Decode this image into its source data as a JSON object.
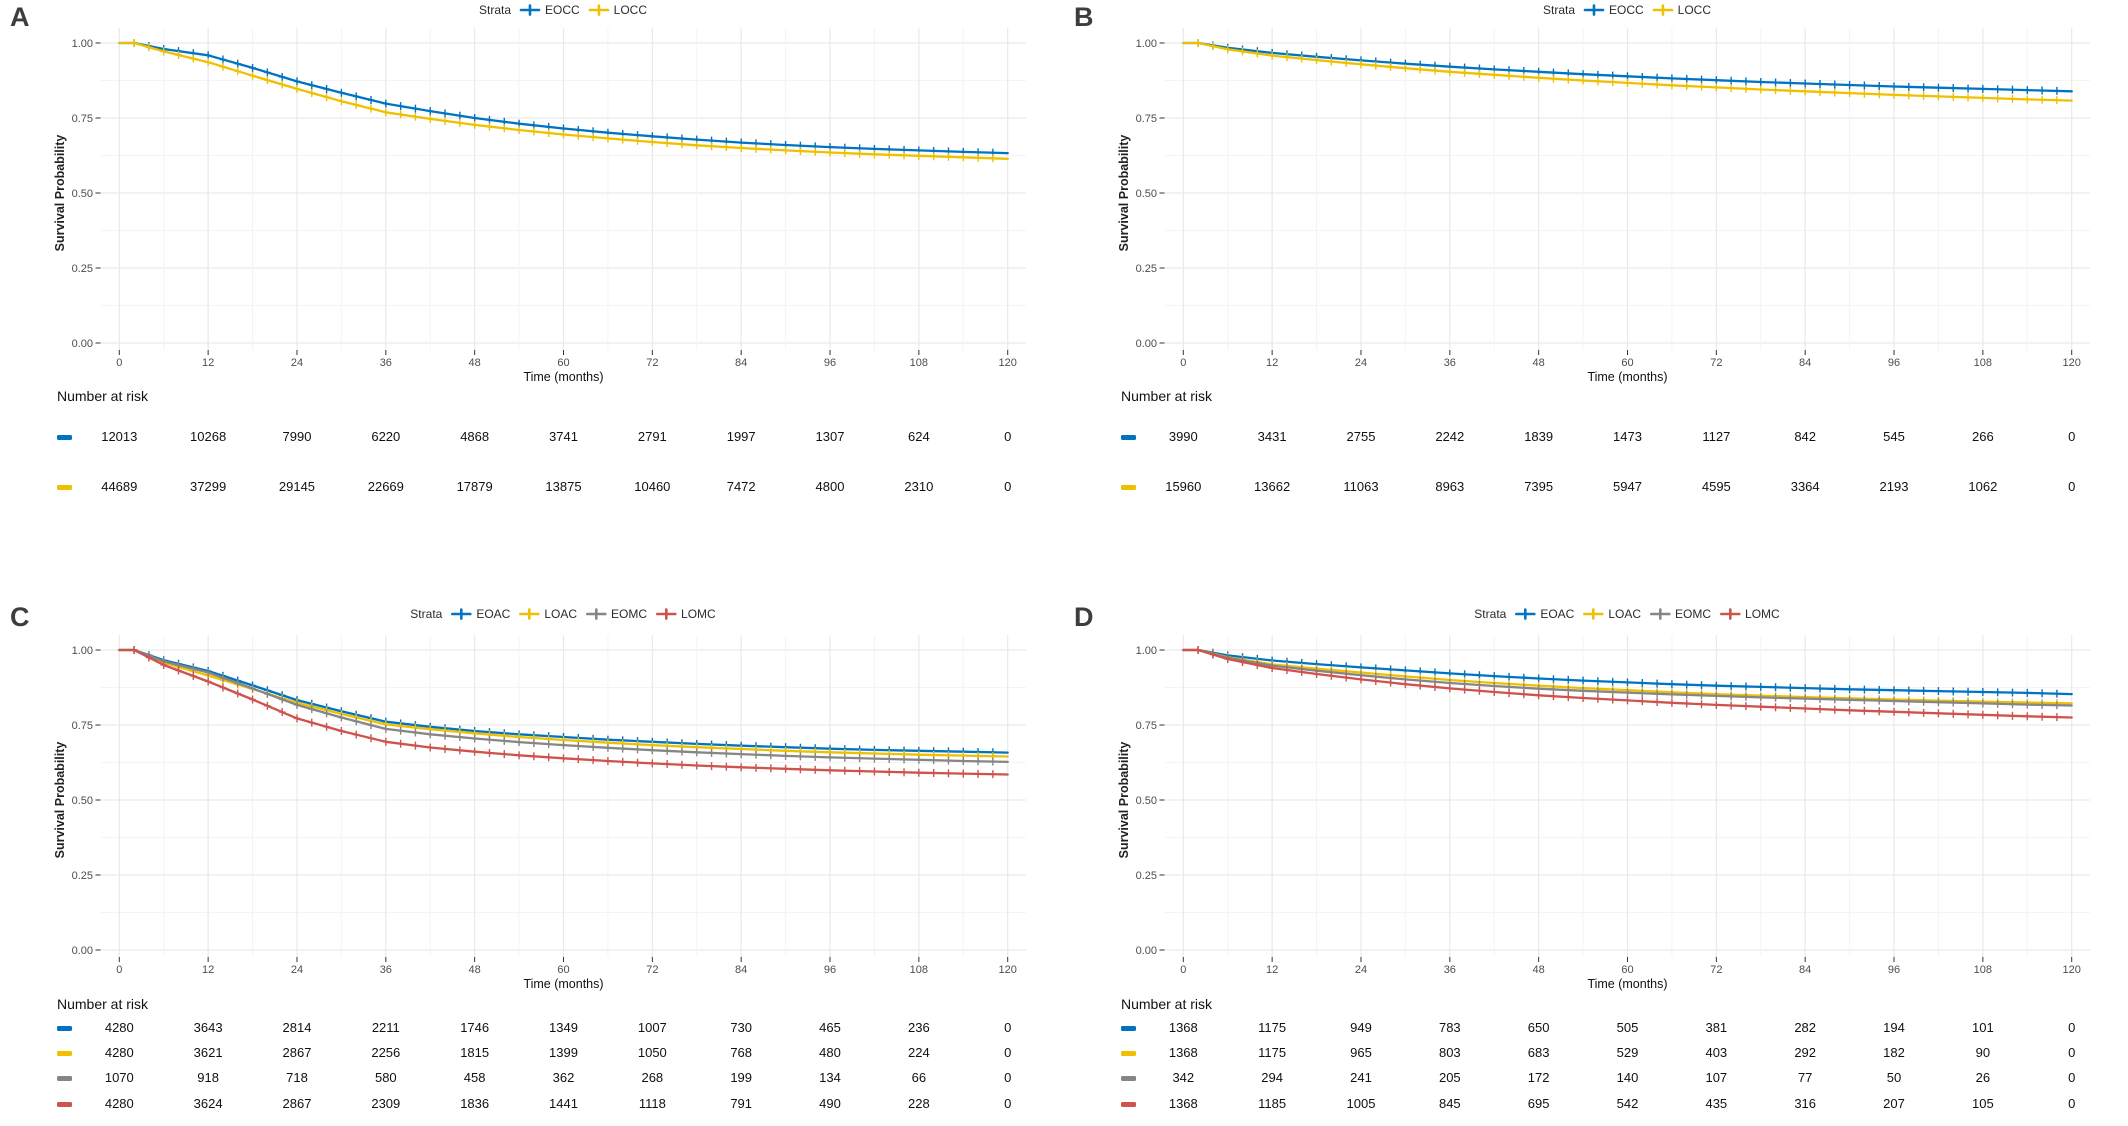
{
  "figure_background": "#ffffff",
  "strata_colors": {
    "blue": "#0073C2",
    "gold": "#EFC000",
    "gray": "#868686",
    "red": "#CD534C"
  },
  "chart_data": [
    {
      "type": "line",
      "subtype": "kaplan-meier-survival",
      "panel_label": "A",
      "legend_title": "Strata",
      "xlabel": "Time (months)",
      "ylabel": "Survival Probability",
      "xlim": [
        0,
        120
      ],
      "ylim": [
        0,
        1
      ],
      "x_ticks": [
        0,
        12,
        24,
        36,
        48,
        60,
        72,
        84,
        96,
        108,
        120
      ],
      "y_ticks": [
        0,
        0.25,
        0.5,
        0.75,
        1
      ],
      "grid": true,
      "legend_position": "top",
      "x": [
        0,
        6,
        12,
        18,
        24,
        30,
        36,
        42,
        48,
        54,
        60,
        66,
        72,
        78,
        84,
        90,
        96,
        102,
        108,
        114,
        120
      ],
      "series": [
        {
          "name": "EOCC",
          "color": "#0073C2",
          "values": [
            1.0,
            0.98,
            0.959,
            0.917,
            0.872,
            0.834,
            0.798,
            0.773,
            0.75,
            0.731,
            0.715,
            0.701,
            0.689,
            0.678,
            0.668,
            0.66,
            0.653,
            0.647,
            0.642,
            0.637,
            0.633
          ]
        },
        {
          "name": "LOCC",
          "color": "#EFC000",
          "values": [
            1.0,
            0.972,
            0.936,
            0.891,
            0.847,
            0.806,
            0.769,
            0.747,
            0.727,
            0.71,
            0.695,
            0.682,
            0.67,
            0.659,
            0.65,
            0.642,
            0.635,
            0.629,
            0.624,
            0.619,
            0.614
          ]
        }
      ],
      "risk_table": {
        "title": "Number at risk",
        "months": [
          0,
          12,
          24,
          36,
          48,
          60,
          72,
          84,
          96,
          108,
          120
        ],
        "rows": [
          {
            "name": "EOCC",
            "color": "#0073C2",
            "counts": [
              12013,
              10268,
              7990,
              6220,
              4868,
              3741,
              2791,
              1997,
              1307,
              624,
              0
            ]
          },
          {
            "name": "LOCC",
            "color": "#EFC000",
            "counts": [
              44689,
              37299,
              29145,
              22669,
              17879,
              13875,
              10460,
              7472,
              4800,
              2310,
              0
            ]
          }
        ]
      }
    },
    {
      "type": "line",
      "subtype": "kaplan-meier-survival",
      "panel_label": "B",
      "legend_title": "Strata",
      "xlabel": "Time (months)",
      "ylabel": "Survival Probability",
      "xlim": [
        0,
        120
      ],
      "ylim": [
        0,
        1
      ],
      "x_ticks": [
        0,
        12,
        24,
        36,
        48,
        60,
        72,
        84,
        96,
        108,
        120
      ],
      "y_ticks": [
        0,
        0.25,
        0.5,
        0.75,
        1
      ],
      "grid": true,
      "legend_position": "top",
      "x": [
        0,
        6,
        12,
        18,
        24,
        30,
        36,
        42,
        48,
        54,
        60,
        66,
        72,
        78,
        84,
        90,
        96,
        102,
        108,
        114,
        120
      ],
      "series": [
        {
          "name": "EOCC",
          "color": "#0073C2",
          "values": [
            1.0,
            0.984,
            0.967,
            0.954,
            0.942,
            0.931,
            0.921,
            0.912,
            0.904,
            0.896,
            0.889,
            0.882,
            0.876,
            0.87,
            0.865,
            0.86,
            0.855,
            0.851,
            0.847,
            0.843,
            0.839
          ]
        },
        {
          "name": "LOCC",
          "color": "#EFC000",
          "values": [
            1.0,
            0.979,
            0.958,
            0.943,
            0.929,
            0.916,
            0.904,
            0.894,
            0.884,
            0.875,
            0.867,
            0.859,
            0.852,
            0.845,
            0.839,
            0.833,
            0.827,
            0.822,
            0.817,
            0.812,
            0.808
          ]
        }
      ],
      "risk_table": {
        "title": "Number at risk",
        "months": [
          0,
          12,
          24,
          36,
          48,
          60,
          72,
          84,
          96,
          108,
          120
        ],
        "rows": [
          {
            "name": "EOCC",
            "color": "#0073C2",
            "counts": [
              3990,
              3431,
              2755,
              2242,
              1839,
              1473,
              1127,
              842,
              545,
              266,
              0
            ]
          },
          {
            "name": "LOCC",
            "color": "#EFC000",
            "counts": [
              15960,
              13662,
              11063,
              8963,
              7395,
              5947,
              4595,
              3364,
              2193,
              1062,
              0
            ]
          }
        ]
      }
    },
    {
      "type": "line",
      "subtype": "kaplan-meier-survival",
      "panel_label": "C",
      "legend_title": "Strata",
      "xlabel": "Time (months)",
      "ylabel": "Survival Probability",
      "xlim": [
        0,
        120
      ],
      "ylim": [
        0,
        1
      ],
      "x_ticks": [
        0,
        12,
        24,
        36,
        48,
        60,
        72,
        84,
        96,
        108,
        120
      ],
      "y_ticks": [
        0,
        0.25,
        0.5,
        0.75,
        1
      ],
      "grid": true,
      "legend_position": "top",
      "x": [
        0,
        6,
        12,
        18,
        24,
        30,
        36,
        42,
        48,
        54,
        60,
        66,
        72,
        78,
        84,
        90,
        96,
        102,
        108,
        114,
        120
      ],
      "series": [
        {
          "name": "EOAC",
          "color": "#0073C2",
          "values": [
            1.0,
            0.966,
            0.93,
            0.882,
            0.833,
            0.796,
            0.761,
            0.744,
            0.73,
            0.719,
            0.71,
            0.701,
            0.694,
            0.687,
            0.681,
            0.676,
            0.671,
            0.667,
            0.664,
            0.661,
            0.658
          ]
        },
        {
          "name": "LOAC",
          "color": "#EFC000",
          "values": [
            1.0,
            0.958,
            0.915,
            0.87,
            0.824,
            0.787,
            0.752,
            0.736,
            0.722,
            0.71,
            0.7,
            0.691,
            0.683,
            0.676,
            0.67,
            0.664,
            0.659,
            0.655,
            0.651,
            0.648,
            0.645
          ]
        },
        {
          "name": "EOMC",
          "color": "#868686",
          "values": [
            1.0,
            0.962,
            0.925,
            0.872,
            0.817,
            0.775,
            0.737,
            0.719,
            0.705,
            0.693,
            0.683,
            0.674,
            0.666,
            0.659,
            0.653,
            0.647,
            0.642,
            0.638,
            0.634,
            0.63,
            0.627
          ]
        },
        {
          "name": "LOMC",
          "color": "#CD534C",
          "values": [
            1.0,
            0.95,
            0.895,
            0.835,
            0.772,
            0.73,
            0.694,
            0.675,
            0.661,
            0.649,
            0.639,
            0.63,
            0.622,
            0.615,
            0.609,
            0.604,
            0.599,
            0.595,
            0.591,
            0.588,
            0.585
          ]
        }
      ],
      "risk_table": {
        "title": "Number at risk",
        "months": [
          0,
          12,
          24,
          36,
          48,
          60,
          72,
          84,
          96,
          108,
          120
        ],
        "rows": [
          {
            "name": "EOAC",
            "color": "#0073C2",
            "counts": [
              4280,
              3643,
              2814,
              2211,
              1746,
              1349,
              1007,
              730,
              465,
              236,
              0
            ]
          },
          {
            "name": "LOAC",
            "color": "#EFC000",
            "counts": [
              4280,
              3621,
              2867,
              2256,
              1815,
              1399,
              1050,
              768,
              480,
              224,
              0
            ]
          },
          {
            "name": "EOMC",
            "color": "#868686",
            "counts": [
              1070,
              918,
              718,
              580,
              458,
              362,
              268,
              199,
              134,
              66,
              0
            ]
          },
          {
            "name": "LOMC",
            "color": "#CD534C",
            "counts": [
              4280,
              3624,
              2867,
              2309,
              1836,
              1441,
              1118,
              791,
              490,
              228,
              0
            ]
          }
        ]
      }
    },
    {
      "type": "line",
      "subtype": "kaplan-meier-survival",
      "panel_label": "D",
      "legend_title": "Strata",
      "xlabel": "Time (months)",
      "ylabel": "Survival Probability",
      "xlim": [
        0,
        120
      ],
      "ylim": [
        0,
        1
      ],
      "x_ticks": [
        0,
        12,
        24,
        36,
        48,
        60,
        72,
        84,
        96,
        108,
        120
      ],
      "y_ticks": [
        0,
        0.25,
        0.5,
        0.75,
        1
      ],
      "grid": true,
      "legend_position": "top",
      "x": [
        0,
        6,
        12,
        18,
        24,
        30,
        36,
        42,
        48,
        54,
        60,
        66,
        72,
        78,
        84,
        90,
        96,
        102,
        108,
        114,
        120
      ],
      "series": [
        {
          "name": "EOAC",
          "color": "#0073C2",
          "values": [
            1.0,
            0.982,
            0.965,
            0.953,
            0.942,
            0.932,
            0.922,
            0.913,
            0.905,
            0.898,
            0.892,
            0.886,
            0.881,
            0.877,
            0.873,
            0.869,
            0.866,
            0.863,
            0.86,
            0.857,
            0.853
          ]
        },
        {
          "name": "LOAC",
          "color": "#EFC000",
          "values": [
            1.0,
            0.976,
            0.952,
            0.938,
            0.925,
            0.912,
            0.9,
            0.89,
            0.881,
            0.873,
            0.866,
            0.859,
            0.853,
            0.848,
            0.843,
            0.839,
            0.835,
            0.831,
            0.828,
            0.825,
            0.822
          ]
        },
        {
          "name": "EOMC",
          "color": "#868686",
          "values": [
            1.0,
            0.974,
            0.948,
            0.931,
            0.916,
            0.902,
            0.89,
            0.88,
            0.871,
            0.864,
            0.858,
            0.852,
            0.847,
            0.842,
            0.838,
            0.834,
            0.83,
            0.826,
            0.822,
            0.818,
            0.815
          ]
        },
        {
          "name": "LOMC",
          "color": "#CD534C",
          "values": [
            1.0,
            0.97,
            0.94,
            0.92,
            0.902,
            0.886,
            0.872,
            0.86,
            0.849,
            0.84,
            0.832,
            0.824,
            0.817,
            0.811,
            0.805,
            0.799,
            0.794,
            0.789,
            0.784,
            0.779,
            0.775
          ]
        }
      ],
      "risk_table": {
        "title": "Number at risk",
        "months": [
          0,
          12,
          24,
          36,
          48,
          60,
          72,
          84,
          96,
          108,
          120
        ],
        "rows": [
          {
            "name": "EOAC",
            "color": "#0073C2",
            "counts": [
              1368,
              1175,
              949,
              783,
              650,
              505,
              381,
              282,
              194,
              101,
              0
            ]
          },
          {
            "name": "LOAC",
            "color": "#EFC000",
            "counts": [
              1368,
              1175,
              965,
              803,
              683,
              529,
              403,
              292,
              182,
              90,
              0
            ]
          },
          {
            "name": "EOMC",
            "color": "#868686",
            "counts": [
              342,
              294,
              241,
              205,
              172,
              140,
              107,
              77,
              50,
              26,
              0
            ]
          },
          {
            "name": "LOMC",
            "color": "#CD534C",
            "counts": [
              1368,
              1185,
              1005,
              845,
              695,
              542,
              435,
              316,
              207,
              105,
              0
            ]
          }
        ]
      }
    }
  ]
}
